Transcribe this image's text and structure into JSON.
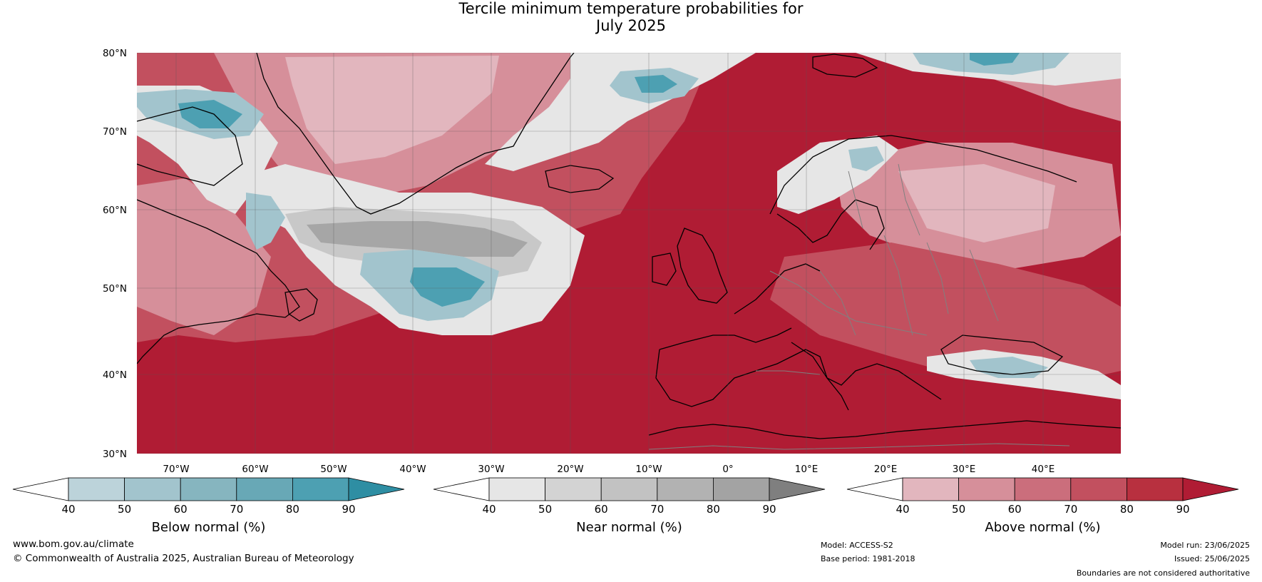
{
  "title_line1": "Tercile minimum temperature probabilities for",
  "title_line2": "July 2025",
  "lat_labels": [
    "80°N",
    "70°N",
    "60°N",
    "50°N",
    "40°N",
    "30°N"
  ],
  "lon_labels": [
    "70°W",
    "60°W",
    "50°W",
    "40°W",
    "30°W",
    "20°W",
    "10°W",
    "0°",
    "10°E",
    "20°E",
    "30°E",
    "40°E"
  ],
  "legends": [
    {
      "label": "Below normal (%)",
      "ticks": [
        "40",
        "50",
        "60",
        "70",
        "80",
        "90"
      ],
      "colors": [
        "#bcd3da",
        "#a2c4cd",
        "#86b5bf",
        "#68a8b6",
        "#4da0b2",
        "#2e8ea3"
      ]
    },
    {
      "label": "Near normal (%)",
      "ticks": [
        "40",
        "50",
        "60",
        "70",
        "80",
        "90"
      ],
      "colors": [
        "#e6e6e6",
        "#d3d3d3",
        "#c2c2c2",
        "#b2b2b2",
        "#a3a3a3",
        "#7f7f7f"
      ]
    },
    {
      "label": "Above normal (%)",
      "ticks": [
        "40",
        "50",
        "60",
        "70",
        "80",
        "90"
      ],
      "colors": [
        "#e2b6be",
        "#d68f9a",
        "#cb6e7c",
        "#c2505f",
        "#b8303f",
        "#b01c34"
      ]
    }
  ],
  "footer": {
    "site": "www.bom.gov.au/climate",
    "copyright": "© Commonwealth of Australia 2025, Australian Bureau of Meteorology",
    "model": "Model: ACCESS-S2",
    "base_period": "Base period: 1981-2018",
    "model_run": "Model run: 23/06/2025",
    "issued": "Issued: 25/06/2025",
    "disclaimer": "Boundaries are not considered authoritative"
  },
  "map_colors": {
    "above_strong": "#b01c34",
    "above_mid": "#c2505f",
    "above_light": "#d68f9a",
    "above_faint": "#e2b6be",
    "near_light": "#e6e6e6",
    "near_mid": "#c8c8c8",
    "near_dark": "#a6a6a6",
    "below_light": "#a2c4cd",
    "below_dark": "#4da0b2",
    "coastline": "#000000",
    "border": "#808080"
  }
}
